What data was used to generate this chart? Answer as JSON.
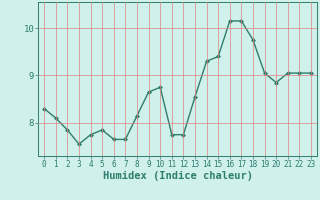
{
  "x": [
    0,
    1,
    2,
    3,
    4,
    5,
    6,
    7,
    8,
    9,
    10,
    11,
    12,
    13,
    14,
    15,
    16,
    17,
    18,
    19,
    20,
    21,
    22,
    23
  ],
  "y": [
    8.3,
    8.1,
    7.85,
    7.55,
    7.75,
    7.85,
    7.65,
    7.65,
    8.15,
    8.65,
    8.75,
    7.75,
    7.75,
    8.55,
    9.3,
    9.4,
    10.15,
    10.15,
    9.75,
    9.05,
    8.85,
    9.05,
    9.05,
    9.05
  ],
  "line_color": "#2e7d6e",
  "marker": "D",
  "markersize": 2.0,
  "linewidth": 1.0,
  "bg_color": "#cff0eb",
  "grid_color": "#e08080",
  "axis_color": "#2e7d6e",
  "tick_color": "#2e7d6e",
  "xlabel": "Humidex (Indice chaleur)",
  "xlabel_fontsize": 7.5,
  "xlim": [
    -0.5,
    23.5
  ],
  "ylim": [
    7.3,
    10.55
  ],
  "yticks": [
    8,
    9,
    10
  ],
  "xtick_fontsize": 5.5,
  "ytick_fontsize": 6.5,
  "grid_linewidth": 0.5,
  "grid_alpha": 1.0
}
